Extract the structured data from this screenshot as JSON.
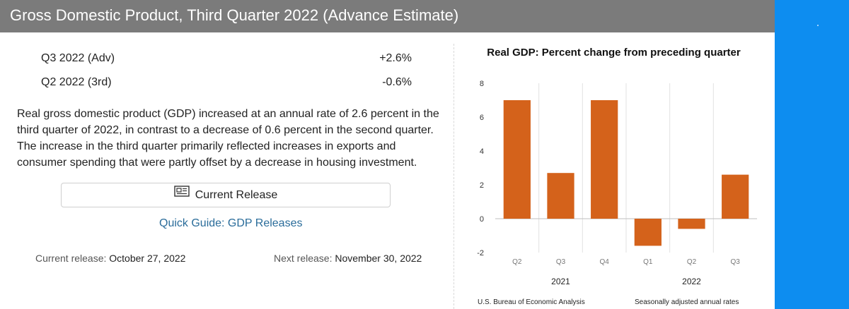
{
  "header": {
    "title": "Gross Domestic Product, Third Quarter 2022 (Advance Estimate)"
  },
  "stats": [
    {
      "label": "Q3 2022 (Adv)",
      "value": "+2.6%"
    },
    {
      "label": "Q2 2022 (3rd)",
      "value": "-0.6%"
    }
  ],
  "description": "Real gross domestic product (GDP) increased at an annual rate of 2.6 percent in the third quarter of 2022, in contrast to a decrease of 0.6 percent in the second quarter. The increase in the third quarter primarily reflected increases in exports and consumer spending that were partly offset by a decrease in housing investment.",
  "current_release_button": {
    "label": "Current Release",
    "icon": "newspaper-icon"
  },
  "quick_guide_link": "Quick Guide: GDP Releases",
  "release_dates": {
    "current_label": "Current release:",
    "current_date": "October 27, 2022",
    "next_label": "Next release:",
    "next_date": "November 30, 2022"
  },
  "colors": {
    "header_bg": "#7b7b7b",
    "bar": "#d4621b",
    "link": "#2a6c9a",
    "side_accent": "#0d8df0"
  },
  "chart_data": {
    "type": "bar",
    "title": "Real GDP:  Percent change from preceding quarter",
    "categories": [
      "Q2",
      "Q3",
      "Q4",
      "Q1",
      "Q2",
      "Q3"
    ],
    "groups": [
      {
        "label": "2021",
        "categories": [
          "Q2",
          "Q3",
          "Q4"
        ]
      },
      {
        "label": "2022",
        "categories": [
          "Q1",
          "Q2",
          "Q3"
        ]
      }
    ],
    "values": [
      7.0,
      2.7,
      7.0,
      -1.6,
      -0.6,
      2.6
    ],
    "ylim": [
      -2,
      8
    ],
    "yticks": [
      8,
      6,
      4,
      2,
      0,
      -2
    ],
    "source": "U.S. Bureau of Economic Analysis",
    "note": "Seasonally adjusted annual rates",
    "grid": "vertical"
  }
}
